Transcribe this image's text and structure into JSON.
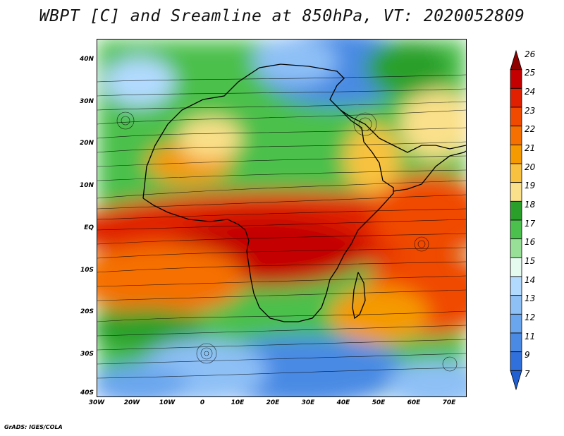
{
  "title": "WBPT [C] and Sreamline at 850hPa, VT: 2020052809",
  "footer": "GrADS: IGES/COLA",
  "map": {
    "lon_range": [
      -30,
      75
    ],
    "lat_range": [
      -40,
      45
    ],
    "lat_ticks": [
      {
        "value": 40,
        "label": "40N"
      },
      {
        "value": 30,
        "label": "30N"
      },
      {
        "value": 20,
        "label": "20N"
      },
      {
        "value": 10,
        "label": "10N"
      },
      {
        "value": 0,
        "label": "EQ"
      },
      {
        "value": -10,
        "label": "10S"
      },
      {
        "value": -20,
        "label": "20S"
      },
      {
        "value": -30,
        "label": "30S"
      },
      {
        "value": -40,
        "label": "40S"
      }
    ],
    "lon_ticks": [
      {
        "value": -30,
        "label": "30W"
      },
      {
        "value": -20,
        "label": "20W"
      },
      {
        "value": -10,
        "label": "10W"
      },
      {
        "value": 0,
        "label": "0"
      },
      {
        "value": 10,
        "label": "10E"
      },
      {
        "value": 20,
        "label": "20E"
      },
      {
        "value": 30,
        "label": "30E"
      },
      {
        "value": 40,
        "label": "40E"
      },
      {
        "value": 50,
        "label": "50E"
      },
      {
        "value": 60,
        "label": "60E"
      },
      {
        "value": 70,
        "label": "70E"
      }
    ]
  },
  "colorbar": {
    "levels": [
      "26",
      "25",
      "24",
      "23",
      "22",
      "21",
      "20",
      "19",
      "18",
      "17",
      "16",
      "15",
      "14",
      "13",
      "12",
      "11",
      "9",
      "7"
    ],
    "colors": [
      "#8f0000",
      "#c40000",
      "#e02000",
      "#f04a00",
      "#f57000",
      "#f59a00",
      "#f8c240",
      "#fae08a",
      "#2aa02a",
      "#4cc04c",
      "#98e098",
      "#e6fbf0",
      "#b2daff",
      "#8ec0f6",
      "#6aa6ee",
      "#4a8ae4",
      "#3070dc",
      "#2060d0"
    ]
  },
  "colors": {
    "land_outline": "#000000",
    "streamline": "#000000",
    "background": "#ffffff"
  }
}
